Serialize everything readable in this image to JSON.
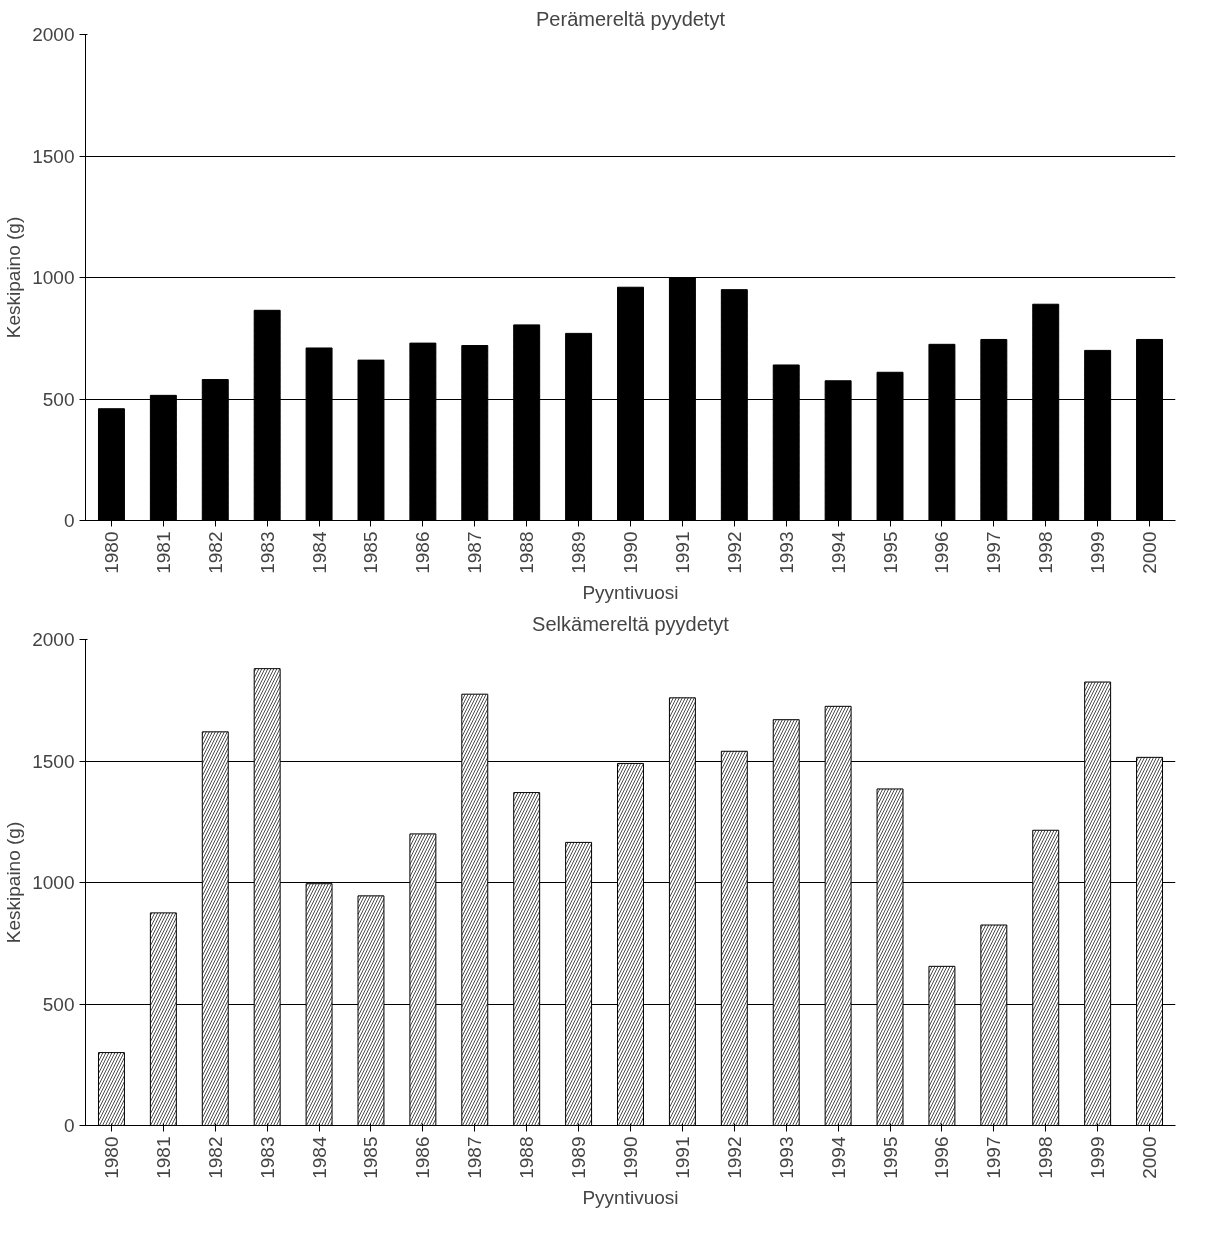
{
  "chart_data": [
    {
      "type": "bar",
      "title": "Perämereltä pyydetyt",
      "xlabel": "Pyyntivuosi",
      "ylabel": "Keskipaino (g)",
      "categories": [
        "1980",
        "1981",
        "1982",
        "1983",
        "1984",
        "1985",
        "1986",
        "1987",
        "1988",
        "1989",
        "1990",
        "1991",
        "1992",
        "1993",
        "1994",
        "1995",
        "1996",
        "1997",
        "1998",
        "1999",
        "2000"
      ],
      "series": [
        {
          "color": "#000000",
          "values": [
            460,
            515,
            580,
            865,
            710,
            660,
            730,
            720,
            805,
            770,
            960,
            1000,
            950,
            640,
            575,
            610,
            725,
            745,
            890,
            700,
            745
          ]
        }
      ],
      "ylim": [
        0,
        2000
      ],
      "yticks": [
        0,
        500,
        1000,
        1500,
        2000
      ],
      "grid": "y"
    },
    {
      "type": "bar",
      "title": "Selkämereltä pyydetyt",
      "xlabel": "Pyyntivuosi",
      "ylabel": "Keskipaino (g)",
      "categories": [
        "1980",
        "1981",
        "1982",
        "1983",
        "1984",
        "1985",
        "1986",
        "1987",
        "1988",
        "1989",
        "1990",
        "1991",
        "1992",
        "1993",
        "1994",
        "1995",
        "1996",
        "1997",
        "1998",
        "1999",
        "2000"
      ],
      "series": [
        {
          "color": "#ffffff",
          "values": [
            300,
            875,
            1620,
            1880,
            995,
            945,
            1200,
            1775,
            1370,
            1165,
            1490,
            1760,
            1540,
            1670,
            1725,
            1385,
            655,
            825,
            1215,
            1825,
            1515
          ]
        }
      ],
      "ylim": [
        0,
        2000
      ],
      "yticks": [
        0,
        500,
        1000,
        1500,
        2000
      ],
      "grid": "y"
    }
  ]
}
